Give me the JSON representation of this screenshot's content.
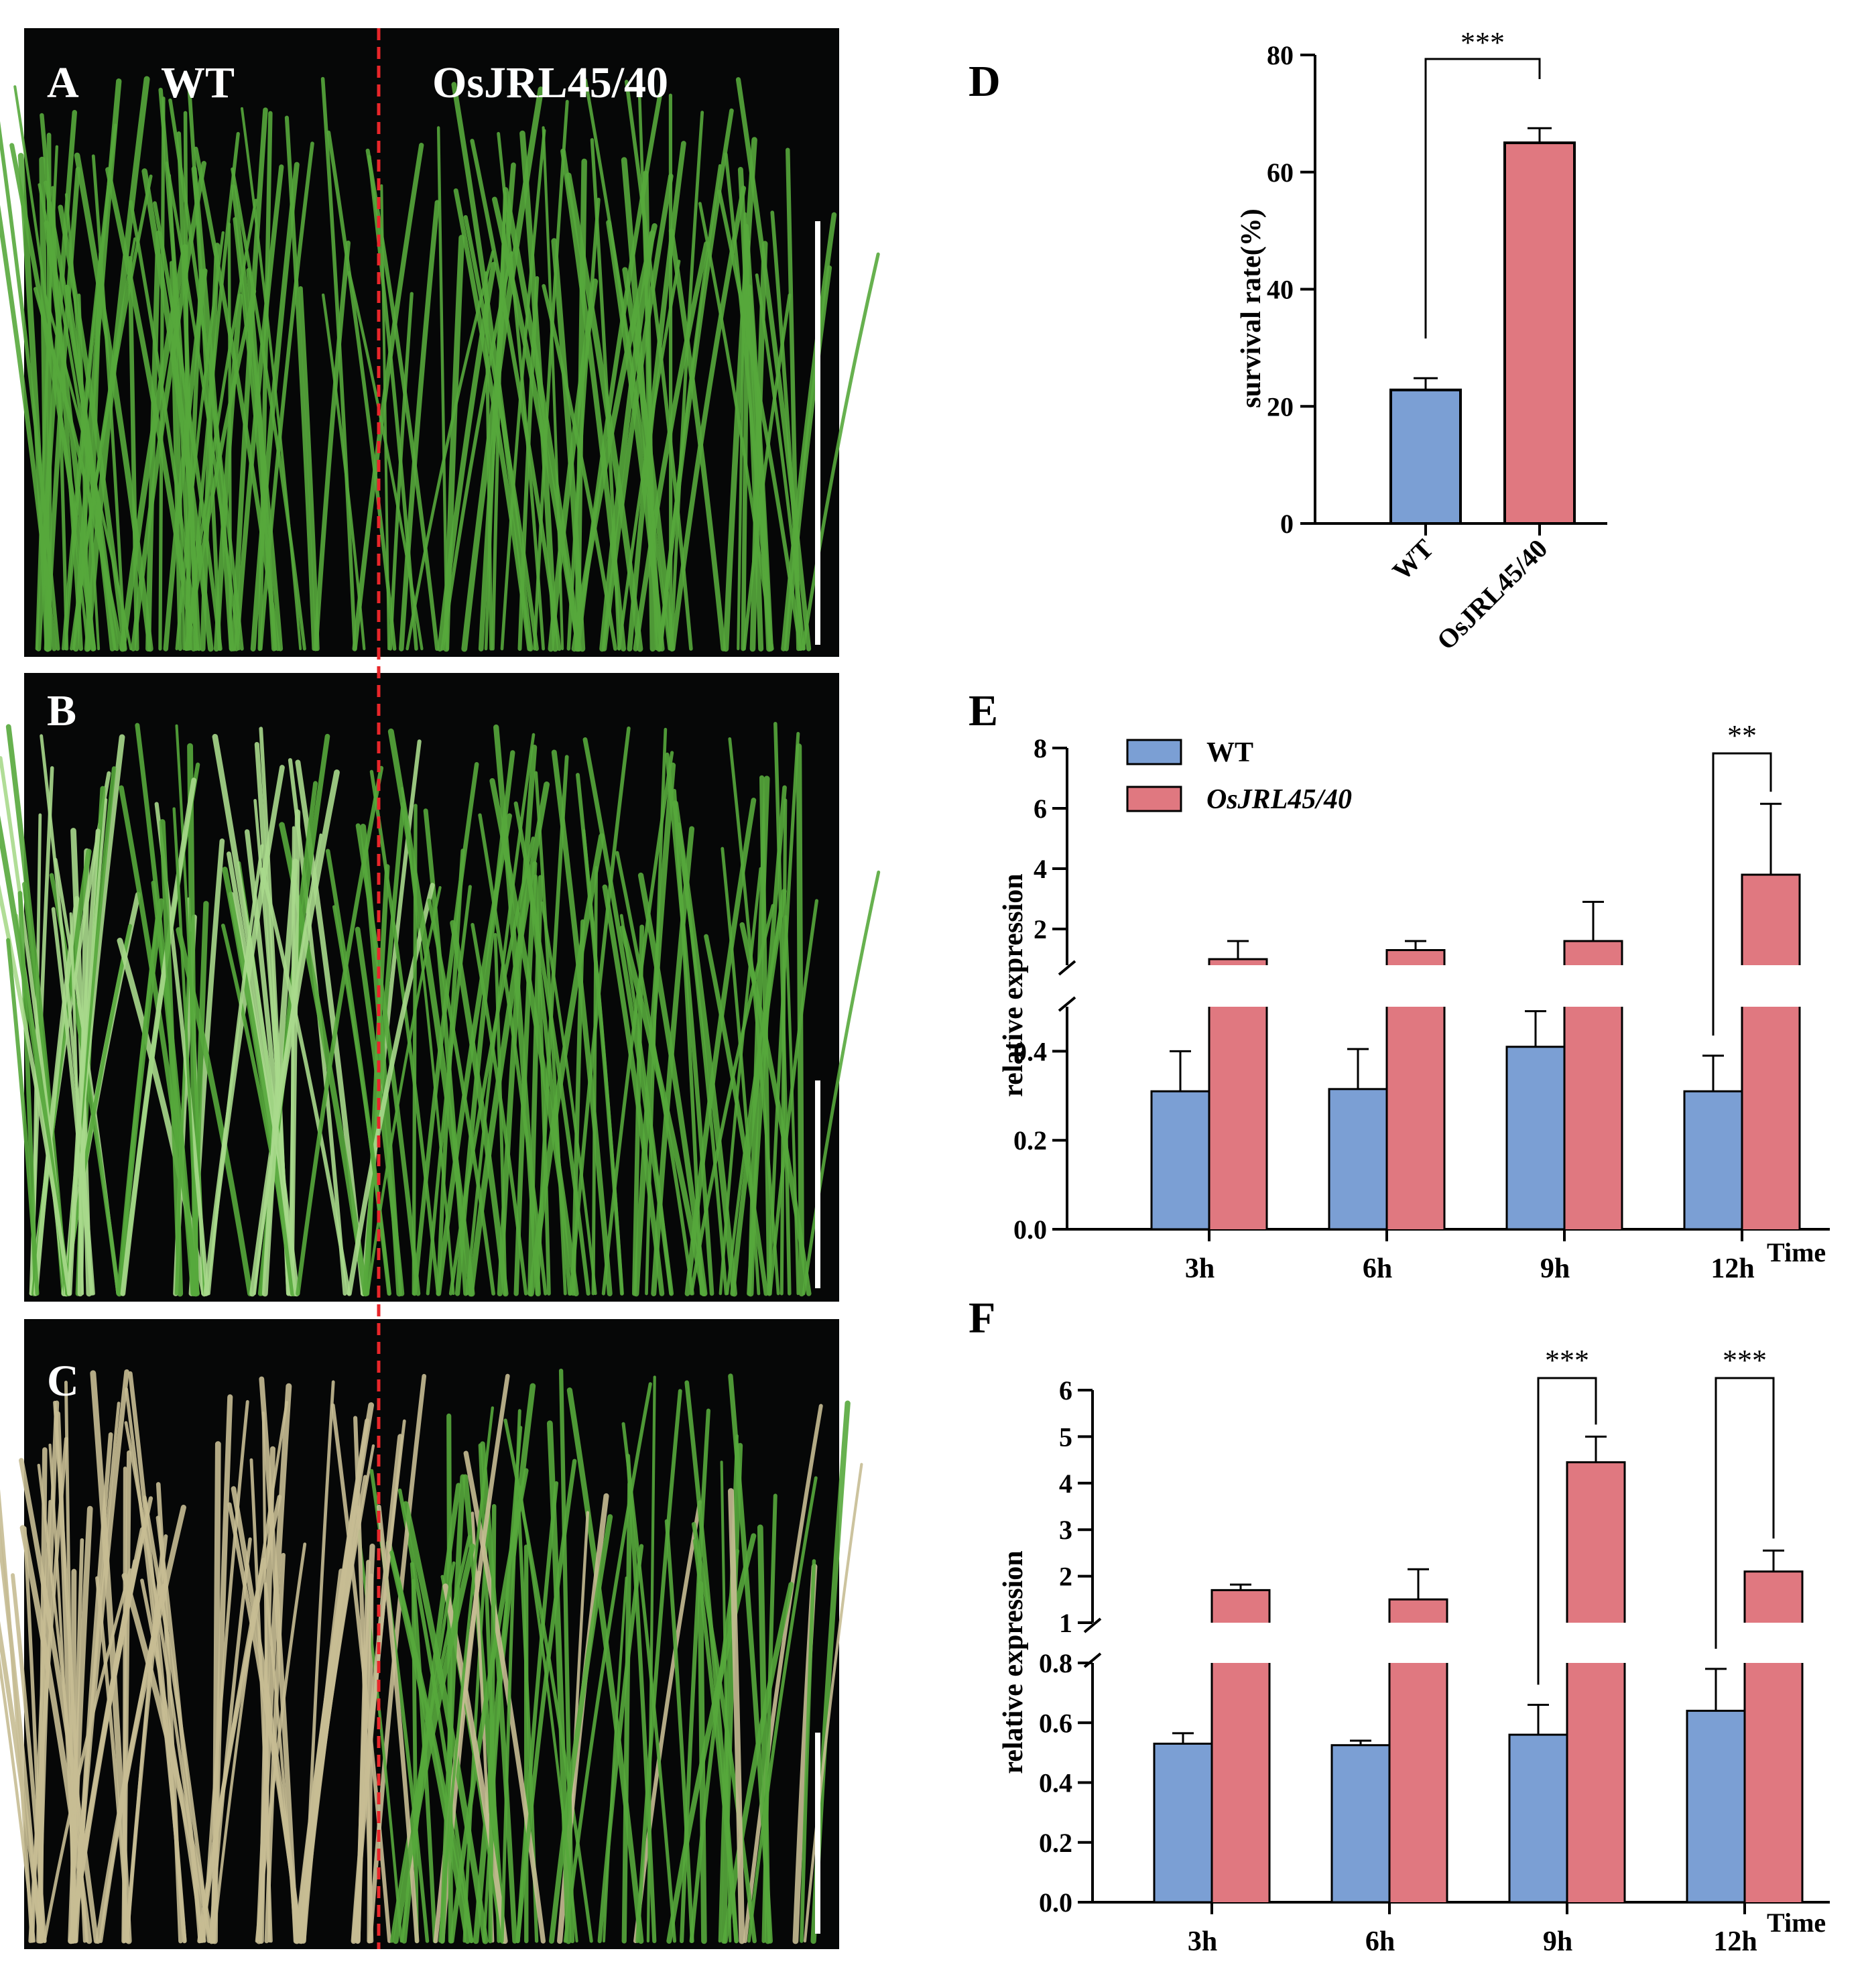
{
  "figure": {
    "panel_labels": {
      "a": "A",
      "b": "B",
      "c": "C",
      "d": "D",
      "e": "E",
      "f": "F"
    },
    "photo_labels": {
      "wt": "WT",
      "mutant": "OsJRL45/40"
    }
  },
  "colors": {
    "wt": "#7b9fd4",
    "mutant": "#e07880",
    "axis": "#000000",
    "divider": "#e8262a",
    "photo_bg": "#060707",
    "plant_green": "#56a83c",
    "plant_pale": "#a9d98c",
    "plant_straw": "#c7bc94"
  },
  "chart_data": [
    {
      "id": "D",
      "type": "bar",
      "categories": [
        "WT",
        "OsJRL45/40"
      ],
      "series": [
        {
          "name": "survival rate",
          "values": [
            22.8,
            65.0
          ],
          "errors": [
            2.0,
            2.5
          ]
        }
      ],
      "title": "",
      "xlabel": "",
      "ylabel": "survival rate(%)",
      "ylim": [
        0,
        80
      ],
      "yticks": [
        "0",
        "20",
        "40",
        "60",
        "80"
      ],
      "significance": [
        {
          "between": [
            "WT",
            "OsJRL45/40"
          ],
          "label": "***"
        }
      ]
    },
    {
      "id": "E",
      "type": "bar",
      "categories": [
        "3h",
        "6h",
        "9h",
        "12h"
      ],
      "series": [
        {
          "name": "WT",
          "values": [
            0.31,
            0.315,
            0.41,
            0.31
          ],
          "errors": [
            0.09,
            0.09,
            0.08,
            0.08
          ]
        },
        {
          "name": "OsJRL45/40",
          "values": [
            1.0,
            1.3,
            1.6,
            3.8
          ],
          "errors": [
            0.6,
            0.3,
            1.3,
            2.35
          ]
        }
      ],
      "xlabel": "Time",
      "ylabel": "relative expression",
      "axis_break": {
        "lower": [
          0,
          0.5
        ],
        "upper": [
          0.8,
          8
        ]
      },
      "yticks_lower": [
        "0.0",
        "0.2",
        "0.4"
      ],
      "yticks_upper": [
        "2",
        "4",
        "6",
        "8"
      ],
      "legend": [
        "WT",
        "OsJRL45/40"
      ],
      "legend_position": "top-left",
      "significance": [
        {
          "category": "12h",
          "label": "**"
        }
      ]
    },
    {
      "id": "F",
      "type": "bar",
      "categories": [
        "3h",
        "6h",
        "9h",
        "12h"
      ],
      "series": [
        {
          "name": "WT",
          "values": [
            0.53,
            0.525,
            0.56,
            0.64
          ],
          "errors": [
            0.035,
            0.015,
            0.1,
            0.14
          ]
        },
        {
          "name": "OsJRL45/40",
          "values": [
            1.7,
            1.5,
            4.45,
            2.1
          ],
          "errors": [
            0.12,
            0.65,
            0.55,
            0.45
          ]
        }
      ],
      "xlabel": "Time",
      "ylabel": "relative expression",
      "axis_break": {
        "lower": [
          0,
          0.8
        ],
        "upper": [
          1,
          6
        ]
      },
      "yticks_lower": [
        "0.0",
        "0.2",
        "0.4",
        "0.6",
        "0.8"
      ],
      "yticks_upper": [
        "1",
        "2",
        "3",
        "4",
        "5",
        "6"
      ],
      "significance": [
        {
          "category": "9h",
          "label": "***"
        },
        {
          "category": "12h",
          "label": "***"
        }
      ]
    }
  ]
}
